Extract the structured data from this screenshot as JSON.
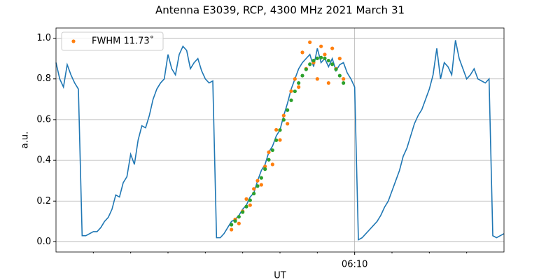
{
  "chart_data": {
    "type": "line",
    "title": "Antenna E3039, RCP, 4300 MHz 2021 March 31",
    "xlabel": "UT",
    "ylabel": "a.u.",
    "xlim": [
      362,
      374
    ],
    "ylim": [
      -0.05,
      1.05
    ],
    "xticks": [
      {
        "value": 370,
        "label": "06:10"
      }
    ],
    "xminorticks": [
      363,
      364,
      365,
      366,
      367,
      368,
      369,
      371,
      372,
      373
    ],
    "yticks": [
      {
        "value": 0,
        "label": "0.0"
      },
      {
        "value": 0.2,
        "label": "0.2"
      },
      {
        "value": 0.4,
        "label": "0.4"
      },
      {
        "value": 0.6,
        "label": "0.6"
      },
      {
        "value": 0.8,
        "label": "0.8"
      },
      {
        "value": 1,
        "label": "1.0"
      }
    ],
    "grid": true,
    "legend": "upper left",
    "series": [
      {
        "style": "line",
        "color": "#1f77b4",
        "x": [
          362.0,
          362.1,
          362.2,
          362.3,
          362.4,
          362.5,
          362.6,
          362.7,
          362.8,
          362.9,
          363.0,
          363.1,
          363.2,
          363.3,
          363.4,
          363.5,
          363.6,
          363.7,
          363.8,
          363.9,
          364.0,
          364.1,
          364.2,
          364.3,
          364.4,
          364.5,
          364.6,
          364.7,
          364.8,
          364.9,
          365.0,
          365.1,
          365.2,
          365.3,
          365.4,
          365.5,
          365.6,
          365.7,
          365.8,
          365.9,
          366.0,
          366.1,
          366.2,
          366.3,
          366.4,
          366.5,
          366.6,
          366.7,
          366.8,
          366.9,
          367.0,
          367.1,
          367.2,
          367.3,
          367.4,
          367.5,
          367.6,
          367.7,
          367.8,
          367.9,
          368.0,
          368.1,
          368.2,
          368.3,
          368.4,
          368.5,
          368.6,
          368.7,
          368.8,
          368.9,
          369.0,
          369.1,
          369.2,
          369.3,
          369.4,
          369.5,
          369.6,
          369.7,
          369.8,
          369.9,
          370.0,
          370.1,
          370.2,
          370.3,
          370.4,
          370.5,
          370.6,
          370.7,
          370.8,
          370.9,
          371.0,
          371.1,
          371.2,
          371.3,
          371.4,
          371.5,
          371.6,
          371.7,
          371.8,
          371.9,
          372.0,
          372.1,
          372.2,
          372.3,
          372.4,
          372.5,
          372.6,
          372.7,
          372.8,
          372.9,
          373.0,
          373.1,
          373.2,
          373.3,
          373.4,
          373.5,
          373.6,
          373.7,
          373.8,
          373.9,
          374.0
        ],
        "values": [
          0.88,
          0.8,
          0.76,
          0.87,
          0.82,
          0.78,
          0.75,
          0.03,
          0.03,
          0.04,
          0.05,
          0.05,
          0.07,
          0.1,
          0.12,
          0.16,
          0.23,
          0.22,
          0.29,
          0.32,
          0.43,
          0.38,
          0.5,
          0.57,
          0.56,
          0.62,
          0.7,
          0.75,
          0.78,
          0.8,
          0.92,
          0.85,
          0.82,
          0.92,
          0.96,
          0.94,
          0.85,
          0.88,
          0.9,
          0.84,
          0.8,
          0.78,
          0.79,
          0.02,
          0.02,
          0.04,
          0.07,
          0.1,
          0.11,
          0.13,
          0.16,
          0.18,
          0.22,
          0.24,
          0.3,
          0.35,
          0.38,
          0.44,
          0.47,
          0.52,
          0.55,
          0.62,
          0.68,
          0.75,
          0.8,
          0.85,
          0.88,
          0.9,
          0.92,
          0.86,
          0.95,
          0.88,
          0.9,
          0.86,
          0.9,
          0.84,
          0.87,
          0.88,
          0.83,
          0.8,
          0.76,
          0.01,
          0.02,
          0.04,
          0.06,
          0.08,
          0.1,
          0.13,
          0.17,
          0.2,
          0.25,
          0.3,
          0.35,
          0.42,
          0.46,
          0.52,
          0.58,
          0.62,
          0.65,
          0.7,
          0.75,
          0.82,
          0.95,
          0.8,
          0.88,
          0.86,
          0.82,
          0.99,
          0.9,
          0.85,
          0.8,
          0.82,
          0.85,
          0.8,
          0.79,
          0.78,
          0.8,
          0.03,
          0.02,
          0.03,
          0.04
        ]
      },
      {
        "style": "marker",
        "name": "FWHM 11.73˚",
        "color": "#ff7f0e",
        "x": [
          366.7,
          366.8,
          366.9,
          367.0,
          367.1,
          367.2,
          367.3,
          367.4,
          367.5,
          367.6,
          367.7,
          367.8,
          367.9,
          368.0,
          368.1,
          368.2,
          368.3,
          368.4,
          368.5,
          368.6,
          368.7,
          368.8,
          368.9,
          369.0,
          369.1,
          369.2,
          369.3,
          369.4,
          369.5,
          369.6,
          369.7
        ],
        "values": [
          0.06,
          0.11,
          0.09,
          0.15,
          0.21,
          0.18,
          0.26,
          0.3,
          0.28,
          0.37,
          0.44,
          0.38,
          0.55,
          0.5,
          0.62,
          0.58,
          0.74,
          0.8,
          0.76,
          0.93,
          0.85,
          0.98,
          0.88,
          0.8,
          0.96,
          0.92,
          0.78,
          0.95,
          0.85,
          0.9,
          0.8
        ]
      },
      {
        "style": "marker",
        "color": "#2ca02c",
        "x": [
          366.7,
          366.8,
          366.9,
          367.0,
          367.1,
          367.2,
          367.3,
          367.4,
          367.5,
          367.6,
          367.7,
          367.8,
          367.9,
          368.0,
          368.1,
          368.2,
          368.3,
          368.4,
          368.5,
          368.6,
          368.7,
          368.8,
          368.9,
          369.0,
          369.1,
          369.2,
          369.3,
          369.4,
          369.5,
          369.6,
          369.7
        ],
        "values": [
          0.084,
          0.102,
          0.123,
          0.146,
          0.173,
          0.204,
          0.237,
          0.274,
          0.314,
          0.357,
          0.403,
          0.45,
          0.499,
          0.549,
          0.599,
          0.647,
          0.695,
          0.739,
          0.78,
          0.816,
          0.847,
          0.872,
          0.89,
          0.901,
          0.905,
          0.901,
          0.89,
          0.872,
          0.847,
          0.816,
          0.78
        ]
      }
    ]
  }
}
